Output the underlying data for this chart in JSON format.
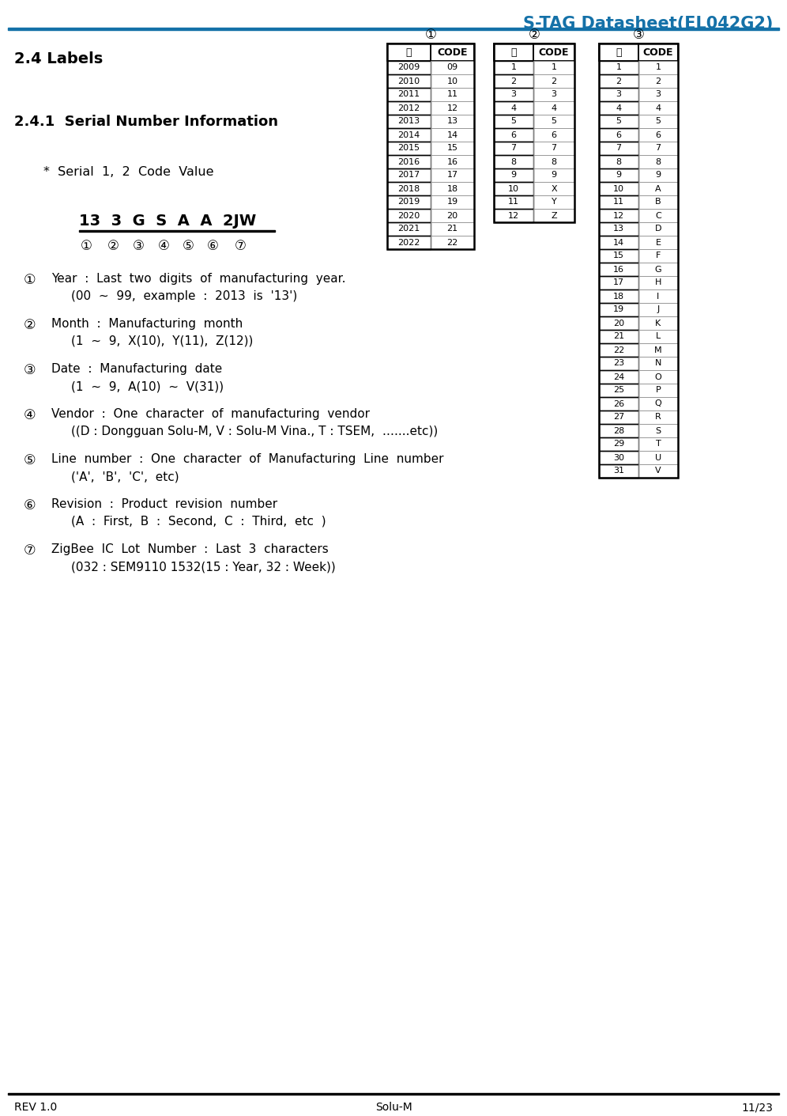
{
  "title": "S-TAG Datasheet(EL042G2)",
  "title_color": "#1471A8",
  "header_line_color": "#1471A8",
  "section_title": "2.4 Labels",
  "subsection_title": "2.4.1  Serial Number Information",
  "serial_label": "*  Serial  1,  2  Code  Value",
  "serial_example": "13  3  G  S  A  A  2JW",
  "circle_labels": [
    "①",
    "②",
    "③",
    "④",
    "⑤",
    "⑥",
    "⑦"
  ],
  "bullet_items": [
    [
      "①",
      "Year  :  Last  two  digits  of  manufacturing  year.",
      "(00  ~  99,  example  :  2013  is  '13')"
    ],
    [
      "②",
      "Month  :  Manufacturing  month",
      "(1  ~  9,  X(10),  Y(11),  Z(12))"
    ],
    [
      "③",
      "Date  :  Manufacturing  date",
      "(1  ~  9,  A(10)  ~  V(31))"
    ],
    [
      "④",
      "Vendor  :  One  character  of  manufacturing  vendor",
      "((D : Dongguan Solu-M, V : Solu-M Vina., T : TSEM,  …....etc))"
    ],
    [
      "⑤",
      "Line  number  :  One  character  of  Manufacturing  Line  number",
      "('A',  'B',  'C',  etc)"
    ],
    [
      "⑥",
      "Revision  :  Product  revision  number",
      "(A  :  First,  B  :  Second,  C  :  Third,  etc  )"
    ],
    [
      "⑦",
      "ZigBee  IC  Lot  Number  :  Last  3  characters",
      "(032 : SEM9110 1532(15 : Year, 32 : Week))"
    ]
  ],
  "footer_left": "REV 1.0",
  "footer_center": "Solu-M",
  "footer_right": "11/23",
  "table1_header": [
    "년",
    "CODE"
  ],
  "table1_rows": [
    [
      "2009",
      "09"
    ],
    [
      "2010",
      "10"
    ],
    [
      "2011",
      "11"
    ],
    [
      "2012",
      "12"
    ],
    [
      "2013",
      "13"
    ],
    [
      "2014",
      "14"
    ],
    [
      "2015",
      "15"
    ],
    [
      "2016",
      "16"
    ],
    [
      "2017",
      "17"
    ],
    [
      "2018",
      "18"
    ],
    [
      "2019",
      "19"
    ],
    [
      "2020",
      "20"
    ],
    [
      "2021",
      "21"
    ],
    [
      "2022",
      "22"
    ]
  ],
  "table2_header": [
    "월",
    "CODE"
  ],
  "table2_rows": [
    [
      "1",
      "1"
    ],
    [
      "2",
      "2"
    ],
    [
      "3",
      "3"
    ],
    [
      "4",
      "4"
    ],
    [
      "5",
      "5"
    ],
    [
      "6",
      "6"
    ],
    [
      "7",
      "7"
    ],
    [
      "8",
      "8"
    ],
    [
      "9",
      "9"
    ],
    [
      "10",
      "X"
    ],
    [
      "11",
      "Y"
    ],
    [
      "12",
      "Z"
    ]
  ],
  "table3_header": [
    "일",
    "CODE"
  ],
  "table3_rows": [
    [
      "1",
      "1"
    ],
    [
      "2",
      "2"
    ],
    [
      "3",
      "3"
    ],
    [
      "4",
      "4"
    ],
    [
      "5",
      "5"
    ],
    [
      "6",
      "6"
    ],
    [
      "7",
      "7"
    ],
    [
      "8",
      "8"
    ],
    [
      "9",
      "9"
    ],
    [
      "10",
      "A"
    ],
    [
      "11",
      "B"
    ],
    [
      "12",
      "C"
    ],
    [
      "13",
      "D"
    ],
    [
      "14",
      "E"
    ],
    [
      "15",
      "F"
    ],
    [
      "16",
      "G"
    ],
    [
      "17",
      "H"
    ],
    [
      "18",
      "I"
    ],
    [
      "19",
      "J"
    ],
    [
      "20",
      "K"
    ],
    [
      "21",
      "L"
    ],
    [
      "22",
      "M"
    ],
    [
      "23",
      "N"
    ],
    [
      "24",
      "O"
    ],
    [
      "25",
      "P"
    ],
    [
      "26",
      "Q"
    ],
    [
      "27",
      "R"
    ],
    [
      "28",
      "S"
    ],
    [
      "29",
      "T"
    ],
    [
      "30",
      "U"
    ],
    [
      "31",
      "V"
    ]
  ],
  "table_label1": "①",
  "table_label2": "②",
  "table_label3": "③"
}
